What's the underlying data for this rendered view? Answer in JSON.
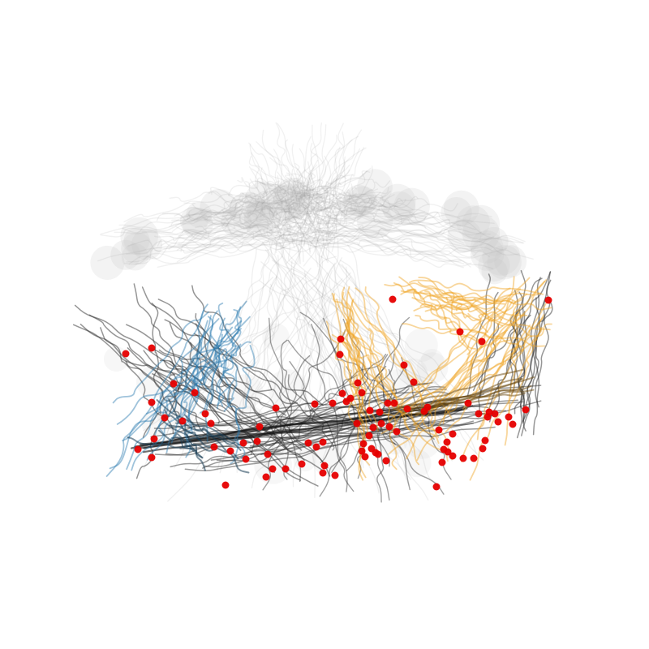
{
  "figure": {
    "background": "#ffffff",
    "colors": {
      "halo": "#c8c8c8",
      "background_traces": "#9a9a9a",
      "dark_traces": "#2e2e2e",
      "blue_group": "#2b7bb0",
      "blue_dark": "#163a52",
      "orange_group": "#f0a524",
      "orange_dark": "#6b4a10",
      "markers": "#e60000"
    },
    "groups": [
      "background",
      "dark",
      "blue",
      "orange",
      "markers"
    ]
  }
}
